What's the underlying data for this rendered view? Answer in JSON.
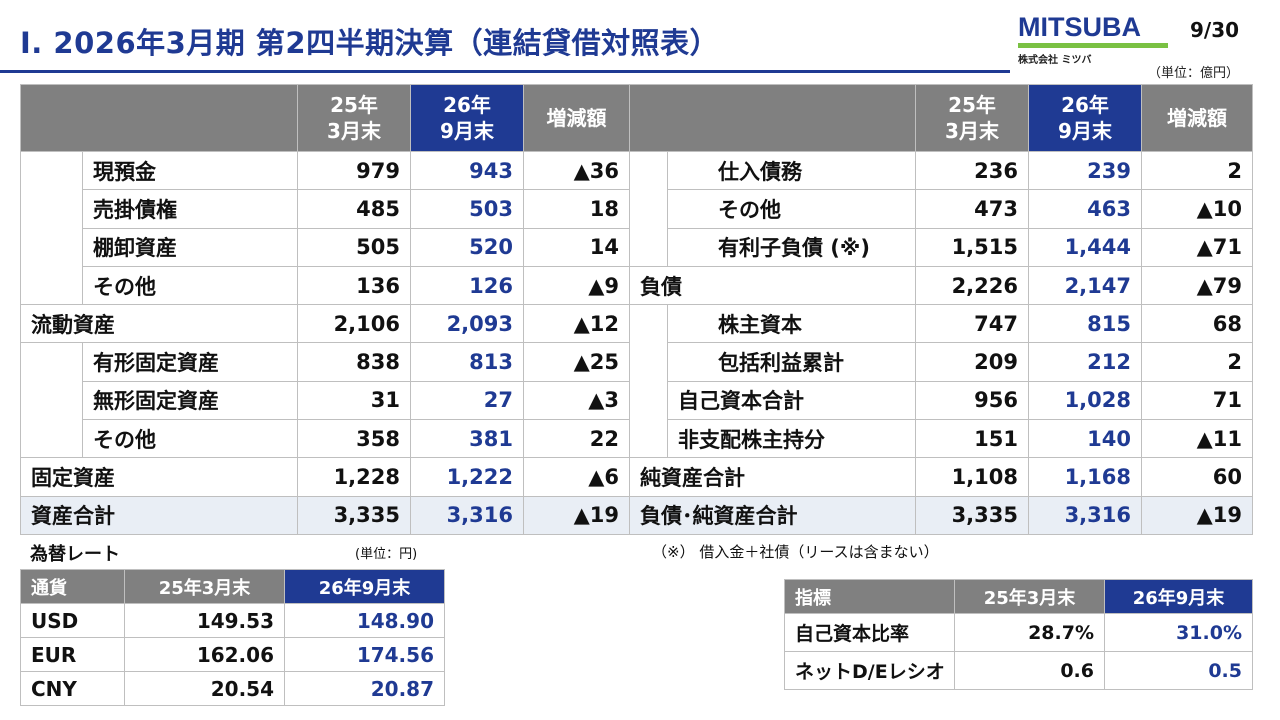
{
  "header": {
    "title": "Ⅰ. 2026年3月期 第2四半期決算（連結貸借対照表）",
    "page": "9/30",
    "unit": "（単位：億円）",
    "logo_text": "MITSUBA",
    "logo_sub": "株式会社 ミツバ",
    "logo_colors": {
      "text": "#1f3a93",
      "bar": "#7ac143"
    }
  },
  "bs": {
    "col_prev": "25年\n3月末",
    "col_cur": "26年\n9月末",
    "col_diff": "増減額",
    "assets": [
      {
        "label": "現預金",
        "prev": "979",
        "cur": "943",
        "diff": "▲36"
      },
      {
        "label": "売掛債権",
        "prev": "485",
        "cur": "503",
        "diff": "18"
      },
      {
        "label": "棚卸資産",
        "prev": "505",
        "cur": "520",
        "diff": "14"
      },
      {
        "label": "その他",
        "prev": "136",
        "cur": "126",
        "diff": "▲9"
      },
      {
        "label": "流動資産",
        "prev": "2,106",
        "cur": "2,093",
        "diff": "▲12"
      },
      {
        "label": "有形固定資産",
        "prev": "838",
        "cur": "813",
        "diff": "▲25"
      },
      {
        "label": "無形固定資産",
        "prev": "31",
        "cur": "27",
        "diff": "▲3"
      },
      {
        "label": "その他",
        "prev": "358",
        "cur": "381",
        "diff": "22"
      },
      {
        "label": "固定資産",
        "prev": "1,228",
        "cur": "1,222",
        "diff": "▲6"
      },
      {
        "label": "資産合計",
        "prev": "3,335",
        "cur": "3,316",
        "diff": "▲19"
      }
    ],
    "liabilities": [
      {
        "label": "仕入債務",
        "prev": "236",
        "cur": "239",
        "diff": "2"
      },
      {
        "label": "その他",
        "prev": "473",
        "cur": "463",
        "diff": "▲10"
      },
      {
        "label": "有利子負債 (※)",
        "prev": "1,515",
        "cur": "1,444",
        "diff": "▲71"
      },
      {
        "label": "負債",
        "prev": "2,226",
        "cur": "2,147",
        "diff": "▲79"
      },
      {
        "label": "株主資本",
        "prev": "747",
        "cur": "815",
        "diff": "68"
      },
      {
        "label": "包括利益累計",
        "prev": "209",
        "cur": "212",
        "diff": "2"
      },
      {
        "label": "自己資本合計",
        "prev": "956",
        "cur": "1,028",
        "diff": "71"
      },
      {
        "label": "非支配株主持分",
        "prev": "151",
        "cur": "140",
        "diff": "▲11"
      },
      {
        "label": "純資産合計",
        "prev": "1,108",
        "cur": "1,168",
        "diff": "60"
      },
      {
        "label": "負債･純資産合計",
        "prev": "3,335",
        "cur": "3,316",
        "diff": "▲19"
      }
    ]
  },
  "fx": {
    "title": "為替レート",
    "unit": "(単位：円)",
    "headers": [
      "通貨",
      "25年3月末",
      "26年9月末"
    ],
    "rows": [
      {
        "ccy": "USD",
        "prev": "149.53",
        "cur": "148.90"
      },
      {
        "ccy": "EUR",
        "prev": "162.06",
        "cur": "174.56"
      },
      {
        "ccy": "CNY",
        "prev": "20.54",
        "cur": "20.87"
      }
    ]
  },
  "note": "（※） 借入金＋社債（リースは含まない）",
  "indicators": {
    "headers": [
      "指標",
      "25年3月末",
      "26年9月末"
    ],
    "rows": [
      {
        "label": "自己資本比率",
        "prev": "28.7%",
        "cur": "31.0%"
      },
      {
        "label": "ネットD/Eレシオ",
        "prev": "0.6",
        "cur": "0.5"
      }
    ]
  }
}
